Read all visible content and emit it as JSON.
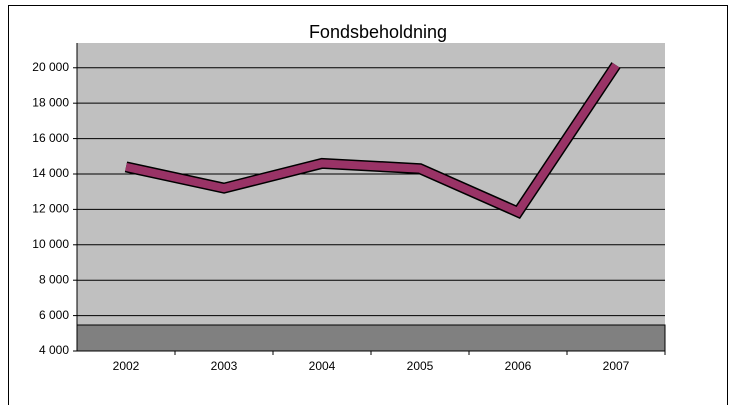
{
  "chart_data": {
    "type": "line",
    "title": "Fondsbeholdning",
    "categories": [
      "2002",
      "2003",
      "2004",
      "2005",
      "2006",
      "2007"
    ],
    "values": [
      14400,
      13200,
      14600,
      14300,
      11850,
      20150
    ],
    "color": "#993366",
    "ylim": [
      4000,
      21400
    ],
    "yticks": [
      {
        "value": 4000,
        "label": "4 000"
      },
      {
        "value": 6000,
        "label": "6 000"
      },
      {
        "value": 8000,
        "label": "8 000"
      },
      {
        "value": 10000,
        "label": "10 000"
      },
      {
        "value": 12000,
        "label": "12 000"
      },
      {
        "value": 14000,
        "label": "14 000"
      },
      {
        "value": 16000,
        "label": "16 000"
      },
      {
        "value": 18000,
        "label": "18 000"
      },
      {
        "value": 20000,
        "label": "20 000"
      }
    ],
    "grid": true
  }
}
